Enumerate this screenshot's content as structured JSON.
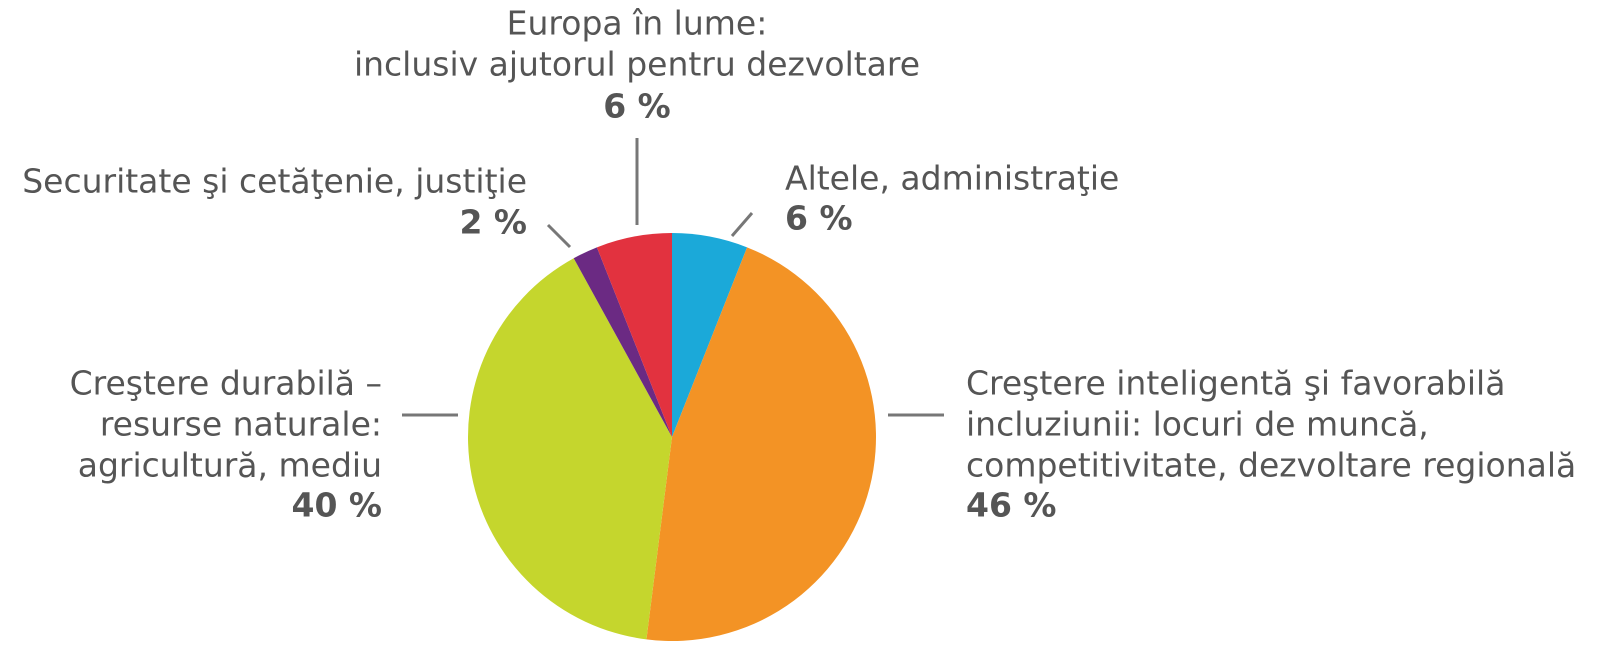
{
  "chart_data": {
    "type": "pie",
    "categories": [
      [
        "Altele, administraţie"
      ],
      [
        "Creştere inteligentă şi favorabilă",
        "incluziunii:  locuri de muncă,",
        "competitivitate, dezvoltare regională"
      ],
      [
        "Creştere durabilă –",
        "resurse naturale:",
        "agricultură, mediu"
      ],
      [
        "Securitate şi cetăţenie, justiţie"
      ],
      [
        "Europa în lume:",
        "inclusiv ajutorul pentru dezvoltare"
      ]
    ],
    "values": [
      6,
      46,
      40,
      2,
      6
    ],
    "value_labels": [
      "6 %",
      "46 %",
      "40 %",
      "2 %",
      "6 %"
    ],
    "colors": [
      "#1ba9d9",
      "#f39325",
      "#c5d62d",
      "#6b2a83",
      "#e2323f"
    ]
  }
}
